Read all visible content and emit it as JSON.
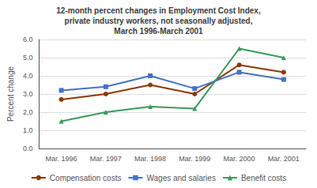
{
  "chart_data": {
    "type": "line",
    "title": "12-month percent changes in Employment Cost Index,\nprivate industry workers, not seasonally adjusted,\nMarch 1996-March 2001",
    "y_label": "Percent change",
    "categories": [
      "Mar. 1996",
      "Mar. 1997",
      "Mar. 1998",
      "Mar. 1999",
      "Mar. 2000",
      "Mar. 2001"
    ],
    "series": [
      {
        "name": "Compensation costs",
        "color": "#8B3A00",
        "marker": "circle",
        "values": [
          2.7,
          3.0,
          3.5,
          3.0,
          4.6,
          4.2
        ]
      },
      {
        "name": "Wages and salaries",
        "color": "#4472C4",
        "marker": "square",
        "values": [
          3.2,
          3.4,
          4.0,
          3.3,
          4.2,
          3.8
        ]
      },
      {
        "name": "Benefit costs",
        "color": "#3A9A5C",
        "marker": "triangle",
        "values": [
          1.5,
          2.0,
          2.3,
          2.2,
          5.5,
          5.0
        ]
      }
    ],
    "ylim": [
      0.0,
      6.0
    ],
    "yticks": [
      {
        "value": 0,
        "label": "0.0"
      },
      {
        "value": 1,
        "label": "1.0"
      },
      {
        "value": 2,
        "label": "2.0"
      },
      {
        "value": 3,
        "label": "3.0"
      },
      {
        "value": 4,
        "label": "4.0"
      },
      {
        "value": 5,
        "label": "5.0"
      },
      {
        "value": 6,
        "label": "6.0"
      }
    ],
    "grid": true,
    "legend": "bottom"
  }
}
